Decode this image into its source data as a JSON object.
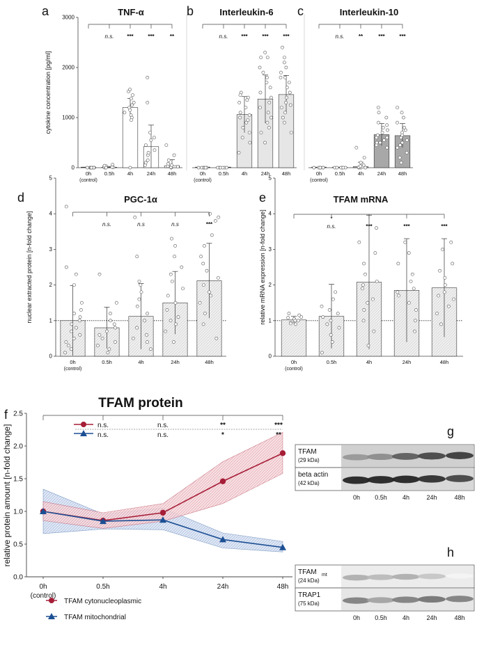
{
  "conditions": [
    "0h",
    "0.5h",
    "4h",
    "24h",
    "48h"
  ],
  "control_label": "(control)",
  "chart_data": [
    {
      "type": "bar",
      "panel": "a",
      "title": "TNF-α",
      "ylabel": "cytokine concentration [pg/ml]",
      "ylim": [
        0,
        3000
      ],
      "yticks": [
        0,
        1000,
        2000,
        3000
      ],
      "categories": [
        "0h",
        "0.5h",
        "4h",
        "24h",
        "48h"
      ],
      "values": [
        0,
        10,
        1200,
        420,
        40
      ],
      "errors": [
        0,
        15,
        180,
        430,
        120
      ],
      "points": [
        [
          0,
          0,
          0,
          0,
          0,
          0,
          0,
          0
        ],
        [
          0,
          5,
          10,
          20,
          30,
          40,
          60,
          0
        ],
        [
          1050,
          1100,
          1150,
          1200,
          1250,
          1300,
          1380,
          1450,
          1520,
          1560,
          1000,
          950,
          0
        ],
        [
          50,
          150,
          250,
          350,
          450,
          550,
          700,
          1300,
          1800,
          300,
          100,
          600
        ],
        [
          0,
          10,
          20,
          30,
          50,
          80,
          150,
          250,
          450
        ]
      ],
      "sig": [
        "n.s.",
        "***",
        "***",
        "**"
      ],
      "fill": "#ffffff"
    },
    {
      "type": "bar",
      "panel": "b",
      "title": "Interleukin-6",
      "ylim": [
        0,
        3000
      ],
      "categories": [
        "0h",
        "0.5h",
        "4h",
        "24h",
        "48h"
      ],
      "values": [
        0,
        0,
        1060,
        1370,
        1460
      ],
      "errors": [
        0,
        0,
        360,
        480,
        380
      ],
      "points": [
        [
          0,
          0,
          0,
          0,
          0,
          0
        ],
        [
          0,
          0,
          0,
          0,
          0,
          0
        ],
        [
          300,
          500,
          700,
          800,
          900,
          1000,
          1100,
          1200,
          1300,
          1400,
          1500,
          1450,
          1350,
          1050,
          950,
          600
        ],
        [
          500,
          700,
          900,
          1100,
          1200,
          1300,
          1400,
          1500,
          1600,
          1700,
          1800,
          1900,
          2000,
          2200,
          2300,
          2200,
          1000,
          800
        ],
        [
          700,
          900,
          1100,
          1200,
          1300,
          1400,
          1500,
          1600,
          1700,
          1800,
          1900,
          2000,
          2100,
          2200,
          2400,
          1800,
          1250,
          1000
        ]
      ],
      "sig": [
        "n.s.",
        "***",
        "***",
        "***"
      ],
      "fill": "#e6e6e6"
    },
    {
      "type": "bar",
      "panel": "c",
      "title": "Interleukin-10",
      "ylim": [
        0,
        3000
      ],
      "categories": [
        "0h",
        "0.5h",
        "4h",
        "24h",
        "48h"
      ],
      "values": [
        0,
        0,
        20,
        660,
        640
      ],
      "errors": [
        0,
        0,
        90,
        220,
        240
      ],
      "points": [
        [
          0,
          0,
          0,
          0,
          0,
          0
        ],
        [
          0,
          0,
          0,
          0,
          0,
          0
        ],
        [
          0,
          0,
          0,
          10,
          20,
          30,
          50,
          100,
          200,
          400
        ],
        [
          400,
          450,
          500,
          550,
          600,
          650,
          700,
          750,
          800,
          850,
          900,
          1000,
          1100,
          1200,
          500,
          600
        ],
        [
          100,
          200,
          300,
          400,
          500,
          550,
          600,
          650,
          700,
          750,
          800,
          900,
          1000,
          1100,
          1200,
          450
        ]
      ],
      "sig": [
        "n.s.",
        "**",
        "***",
        "***"
      ],
      "fill": "#a8a8a8"
    },
    {
      "type": "bar",
      "panel": "d",
      "title": "PGC-1α",
      "ylabel": "nuclear extracted protein [n-fold change]",
      "ylim": [
        0,
        5
      ],
      "yticks": [
        0,
        1,
        2,
        3,
        4,
        5
      ],
      "categories": [
        "0h",
        "0.5h",
        "4h",
        "24h",
        "48h"
      ],
      "values": [
        1.0,
        0.8,
        1.12,
        1.5,
        2.12
      ],
      "errors": [
        0.98,
        0.58,
        0.92,
        0.88,
        1.05
      ],
      "points": [
        [
          0.1,
          0.2,
          0.3,
          0.5,
          0.6,
          0.7,
          0.8,
          0.9,
          1.0,
          1.1,
          1.2,
          1.5,
          2.0,
          2.3,
          2.5,
          4.2,
          0.4,
          1.3
        ],
        [
          0.1,
          0.2,
          0.3,
          0.4,
          0.5,
          0.6,
          0.7,
          0.8,
          1.0,
          1.2,
          1.5,
          2.3,
          0.9
        ],
        [
          0.2,
          0.4,
          0.6,
          0.8,
          1.0,
          1.2,
          1.4,
          1.6,
          1.8,
          2.0,
          2.1,
          2.8,
          3.9,
          0.5
        ],
        [
          0.4,
          0.7,
          0.9,
          1.1,
          1.3,
          1.5,
          1.7,
          1.9,
          2.1,
          2.3,
          2.5,
          2.8,
          3.1,
          3.3,
          1.0
        ],
        [
          0.5,
          0.9,
          1.2,
          1.5,
          1.8,
          2.0,
          2.2,
          2.4,
          2.6,
          2.8,
          3.1,
          3.4,
          3.8,
          4.0,
          3.9,
          1.7
        ]
      ],
      "sig": [
        "n.s.",
        "n.s",
        "n.s",
        "***"
      ],
      "fill": "#efefef",
      "ref_line": 1
    },
    {
      "type": "bar",
      "panel": "e",
      "title": "TFAM mRNA",
      "ylabel": "relative mRNA expression [n-fold change]",
      "ylim": [
        0,
        5
      ],
      "yticks": [
        0,
        1,
        2,
        3,
        4,
        5
      ],
      "categories": [
        "0h",
        "0.5h",
        "4h",
        "24h",
        "48h"
      ],
      "values": [
        1.02,
        1.12,
        2.08,
        1.85,
        1.92
      ],
      "errors": [
        0.1,
        0.9,
        1.88,
        1.45,
        1.38
      ],
      "points": [
        [
          0.9,
          0.95,
          1.0,
          1.05,
          1.1,
          1.15,
          1.2,
          0.92,
          1.0,
          1.08
        ],
        [
          0.1,
          0.4,
          0.6,
          0.8,
          0.9,
          1.0,
          1.1,
          1.2,
          1.3,
          1.4,
          1.6,
          1.8
        ],
        [
          0.3,
          0.7,
          1.0,
          1.3,
          1.6,
          1.9,
          2.1,
          2.3,
          2.6,
          2.9,
          3.2,
          3.6,
          1.5,
          2.0
        ],
        [
          0.7,
          1.0,
          1.3,
          1.5,
          1.7,
          1.9,
          2.1,
          2.3,
          2.6,
          2.9,
          3.2,
          1.8
        ],
        [
          0.9,
          1.2,
          1.4,
          1.6,
          1.8,
          2.0,
          2.2,
          2.4,
          2.6,
          3.0,
          3.2,
          1.7
        ]
      ],
      "sig": [
        "n.s.",
        "***",
        "***",
        "***"
      ],
      "sig_top": [
        "*"
      ],
      "fill": "#efefef",
      "ref_line": 1
    },
    {
      "type": "line",
      "panel": "f",
      "title": "TFAM protein",
      "ylabel": "relative protein amount [n-fold change]",
      "ylim": [
        0,
        2.5
      ],
      "yticks": [
        "0.0",
        "0.5",
        "1.0",
        "1.5",
        "2.0",
        "2.5"
      ],
      "categories": [
        "0h",
        "0.5h",
        "4h",
        "24h",
        "48h"
      ],
      "series": [
        {
          "name": "TFAM cytonucleoplasmic",
          "values": [
            1.0,
            0.86,
            0.98,
            1.46,
            1.89
          ],
          "lower": [
            0.86,
            0.74,
            0.85,
            1.12,
            1.58
          ],
          "upper": [
            1.15,
            0.98,
            1.12,
            1.76,
            2.21
          ],
          "color": "#a61d37",
          "marker": "circle",
          "sig": [
            "n.s.",
            "n.s.",
            "**",
            "***"
          ]
        },
        {
          "name": "TFAM mitochondrial",
          "values": [
            1.0,
            0.85,
            0.87,
            0.57,
            0.45
          ],
          "lower": [
            0.66,
            0.73,
            0.72,
            0.44,
            0.38
          ],
          "upper": [
            1.34,
            0.96,
            1.05,
            0.67,
            0.54
          ],
          "color": "#1c4f94",
          "marker": "triangle",
          "sig": [
            "n.s.",
            "n.s.",
            "*",
            "**"
          ]
        }
      ]
    }
  ],
  "blots": [
    {
      "panel": "g",
      "rows": [
        {
          "label": "TFAM",
          "sub": "(29 kDa)",
          "intensity": [
            0.45,
            0.5,
            0.7,
            0.8,
            0.85
          ]
        },
        {
          "label": "beta actin",
          "sub": "(42 kDa)",
          "intensity": [
            0.95,
            0.95,
            0.95,
            0.9,
            0.8
          ]
        }
      ],
      "lanes": [
        "0h",
        "0.5h",
        "4h",
        "24h",
        "48h"
      ]
    },
    {
      "panel": "h",
      "rows": [
        {
          "label": "TFAM",
          "label_sub": "mt",
          "sub": "(24 kDa)",
          "intensity": [
            0.35,
            0.3,
            0.35,
            0.25,
            0.05
          ]
        },
        {
          "label": "TRAP1",
          "sub": "(75 kDa)",
          "intensity": [
            0.55,
            0.4,
            0.55,
            0.6,
            0.55
          ]
        }
      ],
      "lanes": [
        "0h",
        "0.5h",
        "4h",
        "24h",
        "48h"
      ]
    }
  ]
}
